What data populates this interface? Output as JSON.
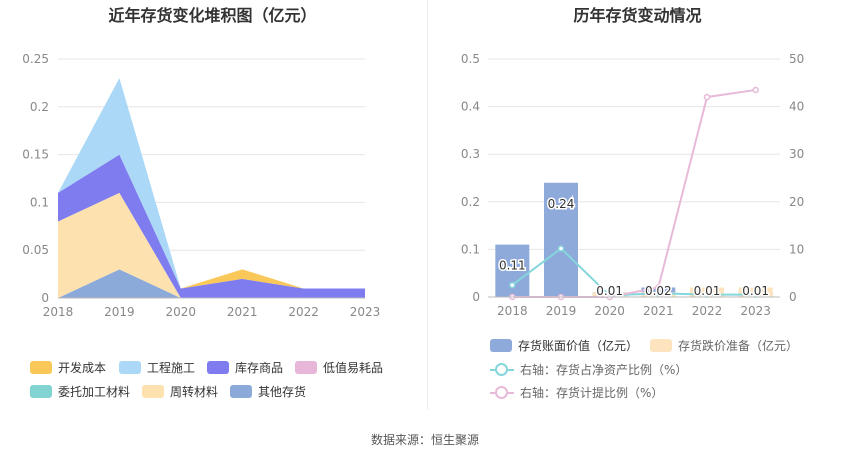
{
  "left_title": "近年存货变化堆积图（亿元）",
  "right_title": "历年存货变动情况",
  "source": "数据来源：恒生聚源",
  "colors": {
    "开发成本": "#fac858",
    "工程施工": "#abd8f6",
    "库存商品": "#7f7cf0",
    "低值易耗品": "#e8b6d9",
    "委托加工材料": "#82d4d2",
    "周转材料": "#fde2b0",
    "其他存货": "#8ba9d9",
    "bar_book": "#8eaadb",
    "bar_reserve": "#fde4bf",
    "line_ratio": "#84d6dc",
    "line_provision": "#e7bad8"
  },
  "chart_data": [
    {
      "type": "area",
      "stacked": true,
      "title": "近年存货变化堆积图（亿元）",
      "categories": [
        "2018",
        "2019",
        "2020",
        "2021",
        "2022",
        "2023"
      ],
      "ylim": [
        0,
        0.25
      ],
      "yticks": [
        "0",
        "0.05",
        "0.1",
        "0.15",
        "0.2",
        "0.25"
      ],
      "series": [
        {
          "name": "其他存货",
          "values": [
            0,
            0.03,
            0,
            0,
            0,
            0
          ]
        },
        {
          "name": "周转材料",
          "values": [
            0.08,
            0.08,
            0,
            0,
            0,
            0
          ]
        },
        {
          "name": "委托加工材料",
          "values": [
            0,
            0,
            0,
            0,
            0,
            0
          ]
        },
        {
          "name": "低值易耗品",
          "values": [
            0,
            0,
            0,
            0,
            0,
            0
          ]
        },
        {
          "name": "库存商品",
          "values": [
            0.03,
            0.04,
            0.01,
            0.02,
            0.01,
            0.01
          ]
        },
        {
          "name": "工程施工",
          "values": [
            0,
            0.08,
            0,
            0,
            0,
            0
          ]
        },
        {
          "name": "开发成本",
          "values": [
            0,
            0,
            0,
            0.01,
            0,
            0
          ]
        }
      ],
      "legend": [
        "开发成本",
        "工程施工",
        "库存商品",
        "低值易耗品",
        "委托加工材料",
        "周转材料",
        "其他存货"
      ],
      "legend_position": "bottom",
      "grid": true
    },
    {
      "type": "bar",
      "title": "历年存货变动情况",
      "categories": [
        "2018",
        "2019",
        "2020",
        "2021",
        "2022",
        "2023"
      ],
      "ylim": [
        0,
        0.5
      ],
      "y2lim": [
        0,
        50
      ],
      "yticks": [
        "0",
        "0.1",
        "0.2",
        "0.3",
        "0.4",
        "0.5"
      ],
      "y2ticks": [
        "0",
        "10",
        "20",
        "30",
        "40",
        "50"
      ],
      "series": [
        {
          "name": "存货账面价值（亿元）",
          "type": "bar",
          "axis": "left",
          "values": [
            0.11,
            0.24,
            0.01,
            0.02,
            0.01,
            0.01
          ],
          "labels": [
            "0.11",
            "0.24",
            "0.01",
            "0.02",
            "0.01",
            "0.01"
          ]
        },
        {
          "name": "存货跌价准备（亿元）",
          "type": "bar",
          "axis": "left",
          "values": [
            0,
            0,
            0.01,
            0.01,
            0.02,
            0.02
          ]
        },
        {
          "name": "右轴：存货占净资产比例（%）",
          "type": "line",
          "axis": "right",
          "values": [
            2.5,
            10.2,
            0.3,
            0.8,
            0.5,
            0.5
          ]
        },
        {
          "name": "右轴：存货计提比例（%）",
          "type": "line",
          "axis": "right",
          "values": [
            0,
            0,
            0,
            2,
            42,
            43.5
          ]
        }
      ],
      "legend": [
        "存货账面价值（亿元）",
        "存货跌价准备（亿元）",
        "右轴：存货占净资产比例（%）",
        "右轴：存货计提比例（%）"
      ],
      "legend_position": "bottom",
      "grid": true
    }
  ]
}
